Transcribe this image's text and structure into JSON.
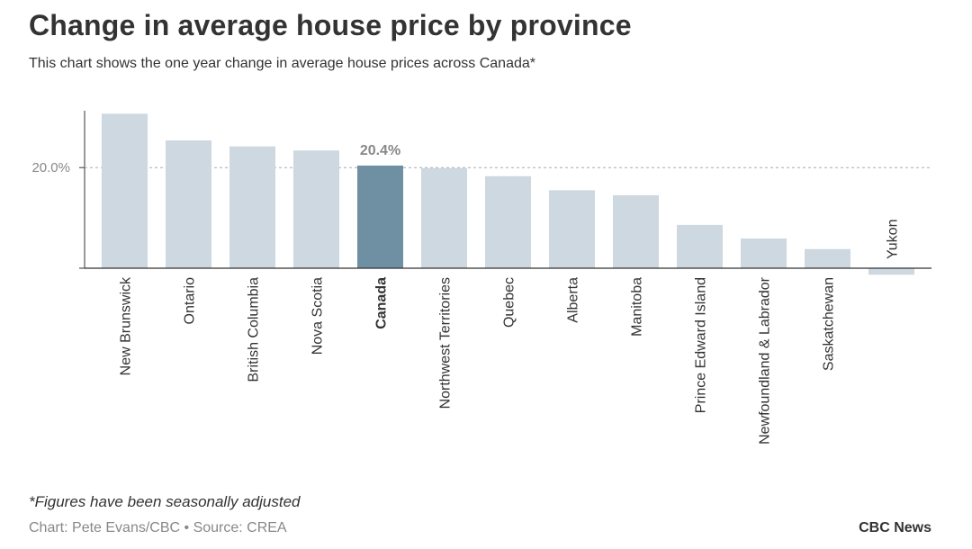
{
  "header": {
    "title": "Change in average house price by province",
    "subtitle": "This chart shows the one year change in average house prices across Canada*"
  },
  "footer": {
    "footnote": "*Figures have been seasonally adjusted",
    "credit": "Chart: Pete Evans/CBC • Source: CREA",
    "brand": "CBC News"
  },
  "colors": {
    "bar": "#cdd8e0",
    "highlight": "#6f8fa3",
    "axis": "#333333",
    "grid": "#aaaaaa",
    "text": "#333333",
    "muted": "#888888"
  },
  "chart_data": {
    "type": "bar",
    "title": "Change in average house price by province",
    "xlabel": "",
    "ylabel": "",
    "ylim": [
      -1.3,
      31.3
    ],
    "yticks": [
      {
        "value": 20,
        "label": "20.0%"
      }
    ],
    "grid": true,
    "highlight": "Canada",
    "highlight_label": "20.4%",
    "categories": [
      "New Brunswick",
      "Ontario",
      "British Columbia",
      "Nova Scotia",
      "Canada",
      "Northwest Territories",
      "Quebec",
      "Alberta",
      "Manitoba",
      "Prince Edward Island",
      "Newfoundland & Labrador",
      "Saskatchewan",
      "Yukon"
    ],
    "values": [
      30.7,
      25.4,
      24.2,
      23.4,
      20.4,
      19.9,
      18.3,
      15.5,
      14.5,
      8.6,
      5.9,
      3.8,
      -1.3
    ]
  }
}
